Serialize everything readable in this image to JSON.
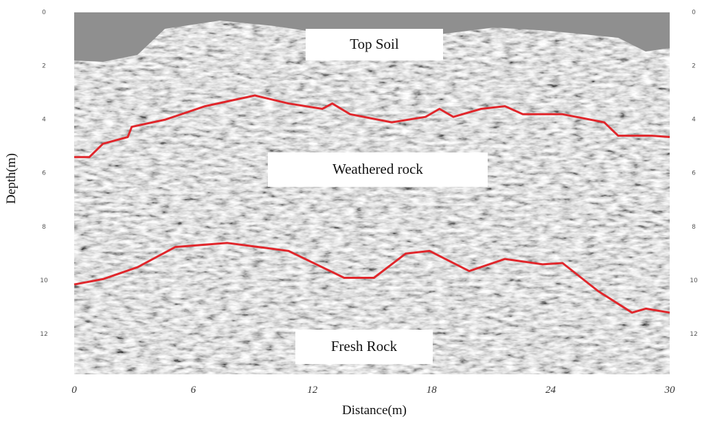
{
  "chart_data": {
    "type": "line",
    "xlabel": "Distance(m)",
    "ylabel": "Depth(m)",
    "xlim": [
      0,
      30
    ],
    "xticks": [
      0,
      6,
      12,
      18,
      24,
      30
    ],
    "ylim": [
      13.5,
      0
    ],
    "yticks": [
      0,
      2,
      4,
      6,
      8,
      10,
      12
    ],
    "annotations": [
      "Top Soil",
      "Weathered rock",
      "Fresh Rock"
    ],
    "series": [
      {
        "color": "#e0262b",
        "x": [
          0,
          0.76,
          1.45,
          2.7,
          2.9,
          4.6,
          6.6,
          9.1,
          10.8,
          12.5,
          13,
          13.9,
          16,
          17.7,
          18.4,
          19.1,
          20.5,
          21.7,
          22.6,
          24.6,
          26.7,
          27.4,
          29.1,
          30
        ],
        "values": [
          5.4,
          5.4,
          4.9,
          4.65,
          4.27,
          4.0,
          3.5,
          3.1,
          3.4,
          3.6,
          3.4,
          3.8,
          4.1,
          3.9,
          3.6,
          3.9,
          3.6,
          3.5,
          3.8,
          3.8,
          4.1,
          4.6,
          4.6,
          4.65
        ]
      },
      {
        "color": "#e0262b",
        "x": [
          0,
          1.45,
          3.2,
          5.1,
          7.7,
          10.8,
          13.6,
          15.1,
          16.7,
          17.9,
          19.9,
          21.7,
          23.6,
          24.6,
          26.4,
          28.1,
          28.8,
          30
        ],
        "values": [
          10.15,
          9.95,
          9.5,
          8.75,
          8.6,
          8.9,
          9.9,
          9.9,
          9.0,
          8.9,
          9.65,
          9.2,
          9.4,
          9.35,
          10.4,
          11.2,
          11.05,
          11.2
        ]
      }
    ]
  }
}
